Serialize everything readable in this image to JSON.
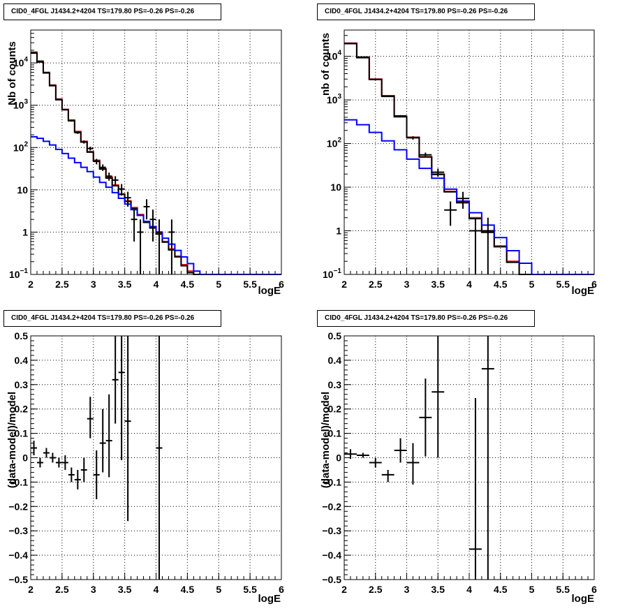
{
  "panels_meta": {
    "title": "CID0_4FGL J1434.2+4204 TS=179.80 PS=-0.26 PS=-0.26"
  },
  "chart_data": [
    {
      "panel": "top-left",
      "type": "line",
      "title": "CID0_4FGL J1434.2+4204 TS=179.80 PS=-0.26 PS=-0.26",
      "xlabel": "logE",
      "ylabel": "Nb of counts",
      "xlim": [
        2,
        6
      ],
      "ylim": [
        0.1,
        60000
      ],
      "yscale": "log",
      "xticks": [
        "2",
        "2.5",
        "3",
        "3.5",
        "4",
        "4.5",
        "5",
        "5.5",
        "6"
      ],
      "yticks": [
        "10^-1",
        "1",
        "10",
        "10^2",
        "10^3",
        "10^4"
      ],
      "grid": true,
      "bin_edges": [
        2.0,
        2.1,
        2.2,
        2.3,
        2.4,
        2.5,
        2.6,
        2.7,
        2.8,
        2.9,
        3.0,
        3.1,
        3.2,
        3.3,
        3.4,
        3.5,
        3.6,
        3.7,
        3.8,
        3.9,
        4.0,
        4.1,
        4.2,
        4.3,
        4.4,
        4.5,
        4.6,
        4.7,
        4.8,
        4.9,
        5.0,
        5.1,
        5.2,
        5.3,
        5.4,
        5.5,
        5.6,
        5.7,
        5.8,
        5.9,
        6.0
      ],
      "series": [
        {
          "color": "#ff0000",
          "style": "step",
          "values": [
            18000,
            11000,
            6000,
            3000,
            1400,
            800,
            450,
            240,
            140,
            80,
            50,
            32,
            20,
            13,
            8,
            5.5,
            3.8,
            2.6,
            1.8,
            1.3,
            0.95,
            0.6,
            0.4,
            0.27,
            0.17,
            0.12,
            0.1,
            0.1,
            0.1,
            0.1,
            0.1,
            0.1,
            0.1,
            0.1,
            0.1,
            0.1,
            0.1,
            0.1,
            0.1,
            0.1
          ]
        },
        {
          "color": "#000000",
          "style": "step",
          "values": [
            17000,
            10500,
            5800,
            2900,
            1350,
            780,
            430,
            230,
            135,
            78,
            48,
            31,
            19,
            12.5,
            7.8,
            5.3,
            3.6,
            2.5,
            1.7,
            1.25,
            0.9,
            0.58,
            0.38,
            0.26,
            0.16,
            0.11,
            0.1,
            0.1,
            0.1,
            0.1,
            0.1,
            0.1,
            0.1,
            0.1,
            0.1,
            0.1,
            0.1,
            0.1,
            0.1,
            0.1
          ]
        },
        {
          "color": "#0000ff",
          "style": "step",
          "values": [
            180,
            165,
            140,
            115,
            90,
            72,
            56,
            44,
            34,
            27,
            20,
            15,
            11.5,
            8.6,
            6.3,
            4.6,
            3.4,
            2.5,
            1.8,
            1.35,
            1.0,
            0.72,
            0.52,
            0.37,
            0.26,
            0.18,
            0.12,
            0.1,
            0.1,
            0.1,
            0.1,
            0.1,
            0.1,
            0.1,
            0.1,
            0.1,
            0.1,
            0.1,
            0.1,
            0.1
          ]
        }
      ],
      "points": [
        {
          "x": 2.05,
          "y": 17500,
          "ylo": 17300,
          "yhi": 17700
        },
        {
          "x": 2.15,
          "y": 11000,
          "ylo": 10800,
          "yhi": 11200
        },
        {
          "x": 2.25,
          "y": 5900,
          "ylo": 5800,
          "yhi": 6050
        },
        {
          "x": 2.35,
          "y": 2950,
          "ylo": 2900,
          "yhi": 3000
        },
        {
          "x": 2.45,
          "y": 1380,
          "ylo": 1340,
          "yhi": 1420
        },
        {
          "x": 2.55,
          "y": 790,
          "ylo": 760,
          "yhi": 820
        },
        {
          "x": 2.65,
          "y": 430,
          "ylo": 410,
          "yhi": 450
        },
        {
          "x": 2.75,
          "y": 225,
          "ylo": 210,
          "yhi": 240
        },
        {
          "x": 2.85,
          "y": 135,
          "ylo": 124,
          "yhi": 147
        },
        {
          "x": 2.95,
          "y": 95,
          "ylo": 85,
          "yhi": 105
        },
        {
          "x": 3.05,
          "y": 47,
          "ylo": 40,
          "yhi": 54
        },
        {
          "x": 3.15,
          "y": 34,
          "ylo": 28,
          "yhi": 40
        },
        {
          "x": 3.25,
          "y": 21,
          "ylo": 16.5,
          "yhi": 25.5
        },
        {
          "x": 3.35,
          "y": 17,
          "ylo": 13,
          "yhi": 21
        },
        {
          "x": 3.45,
          "y": 10.5,
          "ylo": 7.3,
          "yhi": 13.7
        },
        {
          "x": 3.55,
          "y": 6.5,
          "ylo": 4,
          "yhi": 9
        },
        {
          "x": 3.65,
          "y": 2,
          "ylo": 0.6,
          "yhi": 3.4
        },
        {
          "x": 3.75,
          "y": 1,
          "ylo": 0.1,
          "yhi": 2
        },
        {
          "x": 3.85,
          "y": 4,
          "ylo": 2,
          "yhi": 6
        },
        {
          "x": 3.95,
          "y": 2,
          "ylo": 0.6,
          "yhi": 3.4
        },
        {
          "x": 4.05,
          "y": 1,
          "ylo": 0.1,
          "yhi": 2
        },
        {
          "x": 4.25,
          "y": 1,
          "ylo": 0.1,
          "yhi": 2
        }
      ]
    },
    {
      "panel": "top-right",
      "type": "line",
      "title": "CID0_4FGL J1434.2+4204 TS=179.80 PS=-0.26 PS=-0.26",
      "xlabel": "logE",
      "ylabel": "nb of counts",
      "xlim": [
        2,
        6
      ],
      "ylim": [
        0.1,
        40000
      ],
      "yscale": "log",
      "xticks": [
        "2",
        "2.5",
        "3",
        "3.5",
        "4",
        "4.5",
        "5",
        "5.5",
        "6"
      ],
      "yticks": [
        "10^-1",
        "1",
        "10",
        "10^2",
        "10^3",
        "10^4"
      ],
      "grid": true,
      "bin_edges": [
        2.0,
        2.2,
        2.4,
        2.6,
        2.8,
        3.0,
        3.2,
        3.4,
        3.6,
        3.8,
        4.0,
        4.2,
        4.4,
        4.6,
        4.8,
        5.0,
        5.2,
        5.4,
        5.6,
        5.8,
        6.0
      ],
      "series": [
        {
          "color": "#ff0000",
          "style": "step",
          "values": [
            20000,
            9500,
            3000,
            1250,
            420,
            140,
            50,
            20,
            8,
            4.6,
            2,
            0.95,
            0.45,
            0.2,
            0.1,
            0.1,
            0.1,
            0.1,
            0.1,
            0.1
          ]
        },
        {
          "color": "#000000",
          "style": "step",
          "values": [
            19500,
            9300,
            2950,
            1220,
            410,
            138,
            49,
            19.5,
            7.8,
            4.4,
            1.9,
            0.92,
            0.43,
            0.19,
            0.1,
            0.1,
            0.1,
            0.1,
            0.1,
            0.1
          ]
        },
        {
          "color": "#0000ff",
          "style": "step",
          "values": [
            350,
            270,
            180,
            115,
            72,
            44,
            27,
            16,
            9,
            4.8,
            2.6,
            1.35,
            0.7,
            0.35,
            0.18,
            0.1,
            0.1,
            0.1,
            0.1,
            0.1
          ]
        }
      ],
      "points": [
        {
          "x": 2.1,
          "y": 19800,
          "ylo": 19600,
          "yhi": 20000
        },
        {
          "x": 2.3,
          "y": 9600,
          "ylo": 9500,
          "yhi": 9700
        },
        {
          "x": 2.5,
          "y": 2950,
          "ylo": 2900,
          "yhi": 3000
        },
        {
          "x": 2.7,
          "y": 1200,
          "ylo": 1170,
          "yhi": 1230
        },
        {
          "x": 2.9,
          "y": 430,
          "ylo": 410,
          "yhi": 450
        },
        {
          "x": 3.1,
          "y": 135,
          "ylo": 123,
          "yhi": 147
        },
        {
          "x": 3.3,
          "y": 55,
          "ylo": 48,
          "yhi": 62
        },
        {
          "x": 3.5,
          "y": 22,
          "ylo": 17.3,
          "yhi": 26.7
        },
        {
          "x": 3.7,
          "y": 3,
          "ylo": 1.3,
          "yhi": 4.7
        },
        {
          "x": 3.9,
          "y": 5.5,
          "ylo": 3.2,
          "yhi": 7.8
        },
        {
          "x": 4.1,
          "y": 1,
          "ylo": 0.1,
          "yhi": 2
        },
        {
          "x": 4.3,
          "y": 1,
          "ylo": 0.1,
          "yhi": 2
        }
      ]
    },
    {
      "panel": "bottom-left",
      "type": "scatter",
      "title": "CID0_4FGL J1434.2+4204 TS=179.80 PS=-0.26 PS=-0.26",
      "xlabel": "logE",
      "ylabel": "(data-model)/model",
      "xlim": [
        2,
        6
      ],
      "ylim": [
        -0.5,
        0.5
      ],
      "xticks": [
        "2",
        "2.5",
        "3",
        "3.5",
        "4",
        "4.5",
        "5",
        "5.5",
        "6"
      ],
      "yticks": [
        "-0.5",
        "-0.4",
        "-0.3",
        "-0.2",
        "-0.1",
        "0",
        "0.1",
        "0.2",
        "0.3",
        "0.4",
        "0.5"
      ],
      "grid": true,
      "xerr": 0.05,
      "points": [
        {
          "x": 2.05,
          "y": 0.04,
          "ylo": 0.01,
          "yhi": 0.07
        },
        {
          "x": 2.15,
          "y": -0.02,
          "ylo": -0.04,
          "yhi": 0.0
        },
        {
          "x": 2.25,
          "y": 0.02,
          "ylo": 0.0,
          "yhi": 0.04
        },
        {
          "x": 2.35,
          "y": 0.0,
          "ylo": -0.02,
          "yhi": 0.02
        },
        {
          "x": 2.45,
          "y": -0.02,
          "ylo": -0.04,
          "yhi": 0.0
        },
        {
          "x": 2.55,
          "y": -0.02,
          "ylo": -0.05,
          "yhi": 0.01
        },
        {
          "x": 2.65,
          "y": -0.07,
          "ylo": -0.1,
          "yhi": -0.04
        },
        {
          "x": 2.75,
          "y": -0.09,
          "ylo": -0.13,
          "yhi": -0.05
        },
        {
          "x": 2.85,
          "y": -0.05,
          "ylo": -0.1,
          "yhi": 0.0
        },
        {
          "x": 2.95,
          "y": 0.16,
          "ylo": 0.08,
          "yhi": 0.25
        },
        {
          "x": 3.05,
          "y": -0.07,
          "ylo": -0.17,
          "yhi": 0.03
        },
        {
          "x": 3.15,
          "y": 0.06,
          "ylo": -0.06,
          "yhi": 0.2
        },
        {
          "x": 3.25,
          "y": 0.07,
          "ylo": -0.08,
          "yhi": 0.26
        },
        {
          "x": 3.35,
          "y": 0.32,
          "ylo": 0.14,
          "yhi": 0.5
        },
        {
          "x": 3.45,
          "y": 0.35,
          "ylo": -0.01,
          "yhi": 0.5
        },
        {
          "x": 3.55,
          "y": 0.15,
          "ylo": -0.26,
          "yhi": 0.5
        },
        {
          "x": 4.05,
          "y": 0.04,
          "ylo": -0.5,
          "yhi": 0.5
        }
      ]
    },
    {
      "panel": "bottom-right",
      "type": "scatter",
      "title": "CID0_4FGL J1434.2+4204 TS=179.80 PS=-0.26 PS=-0.26",
      "xlabel": "logE",
      "ylabel": "(data-model)/model",
      "xlim": [
        2,
        6
      ],
      "ylim": [
        -0.5,
        0.5
      ],
      "xticks": [
        "2",
        "2.5",
        "3",
        "3.5",
        "4",
        "4.5",
        "5",
        "5.5",
        "6"
      ],
      "yticks": [
        "-0.5",
        "-0.4",
        "-0.3",
        "-0.2",
        "-0.1",
        "0",
        "0.1",
        "0.2",
        "0.3",
        "0.4",
        "0.5"
      ],
      "grid": true,
      "xerr": 0.1,
      "points": [
        {
          "x": 2.1,
          "y": 0.015,
          "ylo": -0.005,
          "yhi": 0.035
        },
        {
          "x": 2.3,
          "y": 0.01,
          "ylo": 0.0,
          "yhi": 0.02
        },
        {
          "x": 2.5,
          "y": -0.02,
          "ylo": -0.04,
          "yhi": 0.0
        },
        {
          "x": 2.7,
          "y": -0.07,
          "ylo": -0.1,
          "yhi": -0.05
        },
        {
          "x": 2.9,
          "y": 0.03,
          "ylo": -0.02,
          "yhi": 0.08
        },
        {
          "x": 3.1,
          "y": -0.02,
          "ylo": -0.11,
          "yhi": 0.06
        },
        {
          "x": 3.3,
          "y": 0.165,
          "ylo": 0.005,
          "yhi": 0.325
        },
        {
          "x": 3.5,
          "y": 0.27,
          "ylo": 0.0,
          "yhi": 0.5
        },
        {
          "x": 4.1,
          "y": -0.375,
          "ylo": -0.5,
          "yhi": 0.245
        },
        {
          "x": 4.3,
          "y": 0.365,
          "ylo": -0.5,
          "yhi": 0.5
        }
      ]
    }
  ]
}
